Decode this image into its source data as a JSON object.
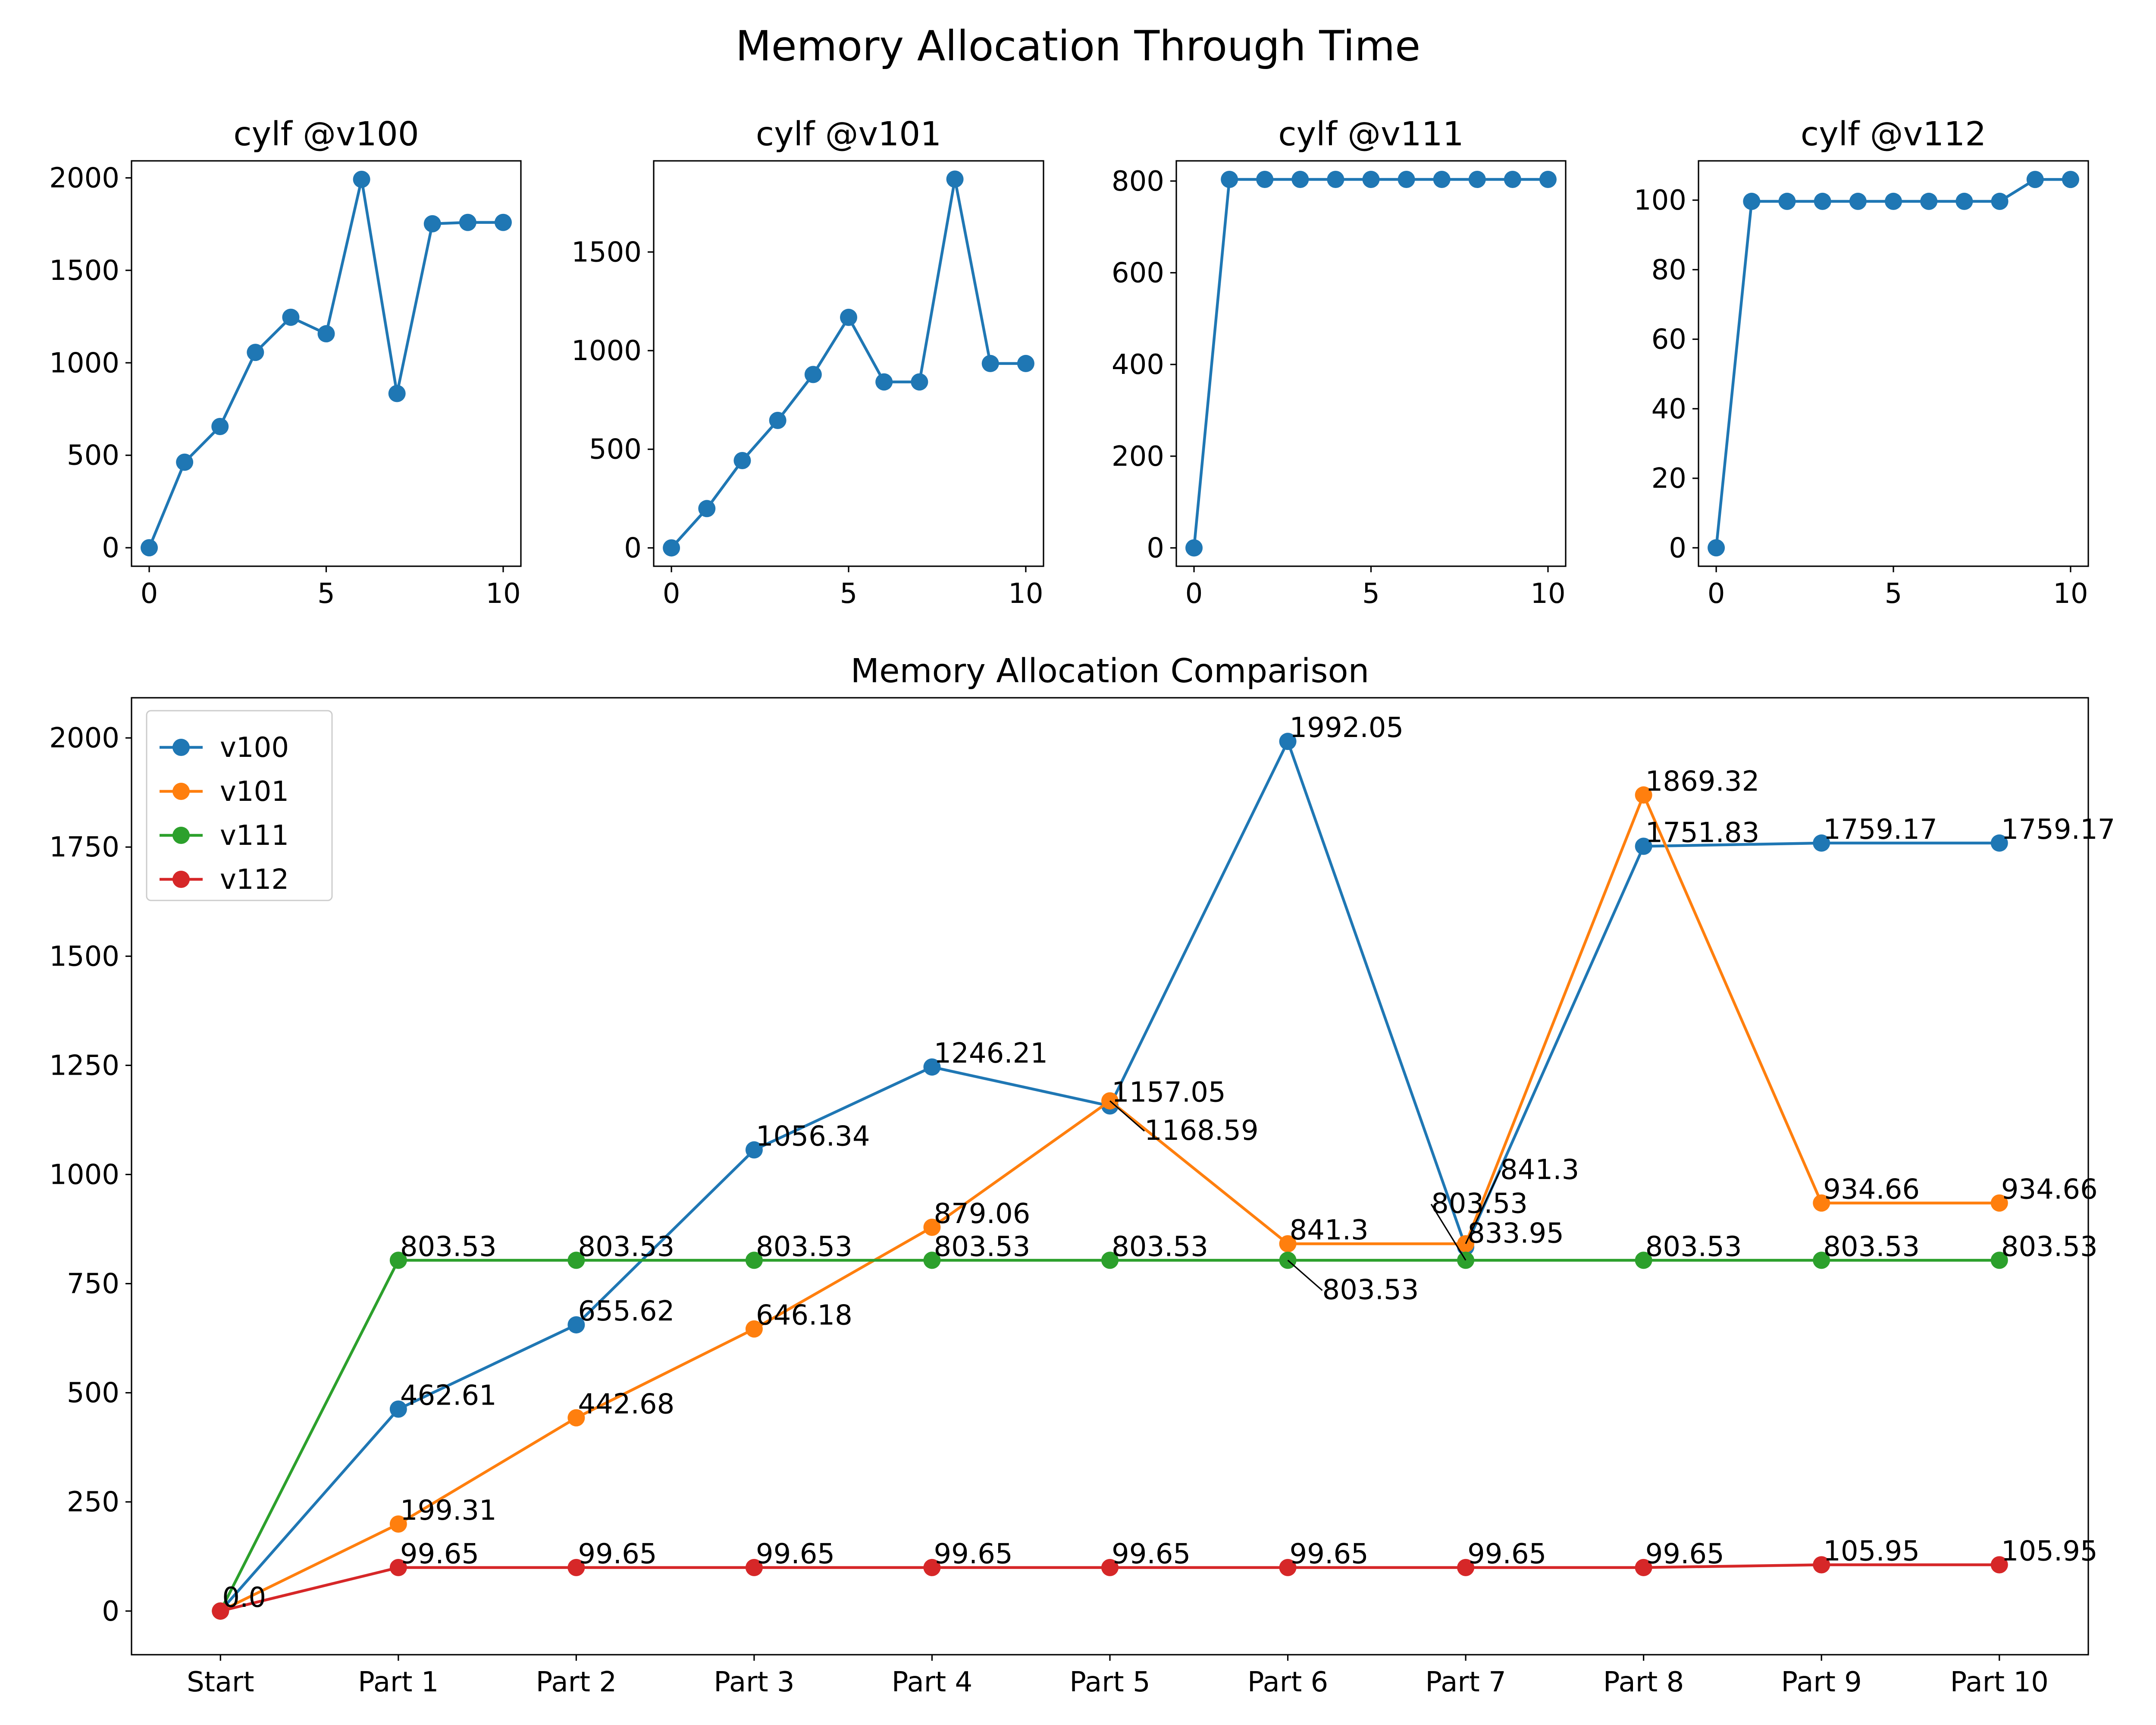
{
  "figure": {
    "title": "Memory Allocation Through Time"
  },
  "colors": {
    "v100": "#1f77b4",
    "v101": "#ff7f0e",
    "v111": "#2ca02c",
    "v112": "#d62728"
  },
  "chart_data": [
    {
      "type": "line",
      "title": "cylf @v100",
      "x": [
        0,
        1,
        2,
        3,
        4,
        5,
        6,
        7,
        8,
        9,
        10
      ],
      "xticks": [
        0,
        5,
        10
      ],
      "xlim": [
        -0.5,
        10.5
      ],
      "yticks": [
        0,
        500,
        1000,
        1500,
        2000
      ],
      "ylim": [
        -100,
        2092
      ],
      "series": [
        {
          "color": "#1f77b4",
          "values": [
            0,
            462.61,
            655.62,
            1056.34,
            1246.21,
            1157.05,
            1992.05,
            833.95,
            1751.83,
            1759.17,
            1759.17
          ]
        }
      ]
    },
    {
      "type": "line",
      "title": "cylf @v101",
      "x": [
        0,
        1,
        2,
        3,
        4,
        5,
        6,
        7,
        8,
        9,
        10
      ],
      "xticks": [
        0,
        5,
        10
      ],
      "xlim": [
        -0.5,
        10.5
      ],
      "yticks": [
        0,
        500,
        1000,
        1500
      ],
      "ylim": [
        -93,
        1962
      ],
      "series": [
        {
          "color": "#1f77b4",
          "values": [
            0,
            199.31,
            442.68,
            646.18,
            879.06,
            1168.59,
            841.3,
            841.3,
            1869.32,
            934.66,
            934.66
          ]
        }
      ]
    },
    {
      "type": "line",
      "title": "cylf @v111",
      "x": [
        0,
        1,
        2,
        3,
        4,
        5,
        6,
        7,
        8,
        9,
        10
      ],
      "xticks": [
        0,
        5,
        10
      ],
      "xlim": [
        -0.5,
        10.5
      ],
      "yticks": [
        0,
        200,
        400,
        600,
        800
      ],
      "ylim": [
        -40,
        844
      ],
      "series": [
        {
          "color": "#1f77b4",
          "values": [
            0,
            803.53,
            803.53,
            803.53,
            803.53,
            803.53,
            803.53,
            803.53,
            803.53,
            803.53,
            803.53
          ]
        }
      ]
    },
    {
      "type": "line",
      "title": "cylf @v112",
      "x": [
        0,
        1,
        2,
        3,
        4,
        5,
        6,
        7,
        8,
        9,
        10
      ],
      "xticks": [
        0,
        5,
        10
      ],
      "xlim": [
        -0.5,
        10.5
      ],
      "yticks": [
        0,
        20,
        40,
        60,
        80,
        100
      ],
      "ylim": [
        -5.3,
        111.3
      ],
      "series": [
        {
          "color": "#1f77b4",
          "values": [
            0,
            99.65,
            99.65,
            99.65,
            99.65,
            99.65,
            99.65,
            99.65,
            99.65,
            105.95,
            105.95
          ]
        }
      ]
    },
    {
      "type": "line",
      "title": "Memory Allocation Comparison",
      "categories": [
        "Start",
        "Part 1",
        "Part 2",
        "Part 3",
        "Part 4",
        "Part 5",
        "Part 6",
        "Part 7",
        "Part 8",
        "Part 9",
        "Part 10"
      ],
      "xlim": [
        -0.5,
        10.5
      ],
      "yticks": [
        0,
        250,
        500,
        750,
        1000,
        1250,
        1500,
        1750,
        2000
      ],
      "ylim": [
        -100,
        2092
      ],
      "legend": "top-left",
      "series": [
        {
          "name": "v100",
          "color": "#1f77b4",
          "values": [
            0,
            462.61,
            655.62,
            1056.34,
            1246.21,
            1157.05,
            1992.05,
            833.95,
            1751.83,
            1759.17,
            1759.17
          ]
        },
        {
          "name": "v101",
          "color": "#ff7f0e",
          "values": [
            0,
            199.31,
            442.68,
            646.18,
            879.06,
            1168.59,
            841.3,
            841.3,
            1869.32,
            934.66,
            934.66
          ]
        },
        {
          "name": "v111",
          "color": "#2ca02c",
          "values": [
            0,
            803.53,
            803.53,
            803.53,
            803.53,
            803.53,
            803.53,
            803.53,
            803.53,
            803.53,
            803.53
          ]
        },
        {
          "name": "v112",
          "color": "#d62728",
          "values": [
            0,
            99.65,
            99.65,
            99.65,
            99.65,
            99.65,
            99.65,
            99.65,
            99.65,
            105.95,
            105.95
          ]
        }
      ],
      "annotations": [
        {
          "series": "v100",
          "labels": [
            "0.0",
            "462.61",
            "655.62",
            "1056.34",
            "1246.21",
            "1157.05",
            "1992.05",
            "833.95",
            "1751.83",
            "1759.17",
            "1759.17"
          ]
        },
        {
          "series": "v101",
          "labels": [
            "0.0",
            "199.31",
            "442.68",
            "646.18",
            "879.06",
            "1168.59",
            "841.3",
            "841.3",
            "1869.32",
            "934.66",
            "934.66"
          ]
        },
        {
          "series": "v111",
          "labels": [
            "0.0",
            "803.53",
            "803.53",
            "803.53",
            "803.53",
            "803.53",
            "803.53",
            "803.53",
            "803.53",
            "803.53",
            "803.53"
          ]
        },
        {
          "series": "v112",
          "labels": [
            "0.0",
            "99.65",
            "99.65",
            "99.65",
            "99.65",
            "99.65",
            "99.65",
            "99.65",
            "99.65",
            "105.95",
            "105.95"
          ]
        }
      ]
    }
  ]
}
